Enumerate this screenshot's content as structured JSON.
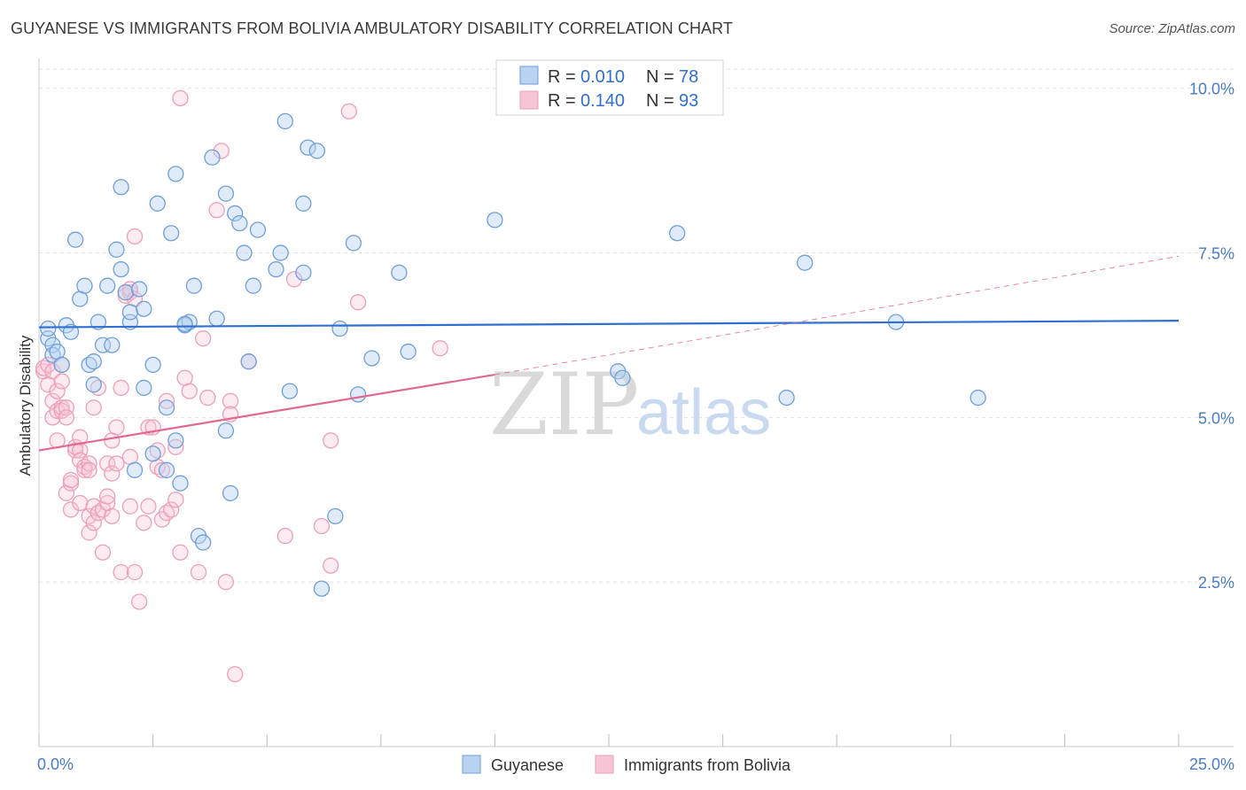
{
  "title": "GUYANESE VS IMMIGRANTS FROM BOLIVIA AMBULATORY DISABILITY CORRELATION CHART",
  "source": "Source: ZipAtlas.com",
  "watermark": {
    "zip": "ZIP",
    "atlas": "atlas"
  },
  "colors": {
    "blue_stroke": "#6f9fd8",
    "blue_fill": "#b9d3f1",
    "blue_line": "#2f6fcf",
    "pink_stroke": "#ec9fb8",
    "pink_fill": "#f6c6d6",
    "pink_line": "#e0698f",
    "grid": "#e2e2e2",
    "axis_label": "#4a7cc9"
  },
  "legend": {
    "row1": {
      "r_label": "R =",
      "r_value": "0.010",
      "n_label": "N =",
      "n_value": "78"
    },
    "row2": {
      "r_label": "R =",
      "r_value": "0.140",
      "n_label": "N =",
      "n_value": "93"
    }
  },
  "chart_data": {
    "type": "scatter",
    "title": "GUYANESE VS IMMIGRANTS FROM BOLIVIA AMBULATORY DISABILITY CORRELATION CHART",
    "xlabel": "",
    "ylabel": "Ambulatory Disability",
    "xlim": [
      0,
      25
    ],
    "ylim": [
      0,
      10.4
    ],
    "x_tick_labels": [
      "0.0%",
      "25.0%"
    ],
    "y_ticks": [
      2.5,
      5.0,
      7.5,
      10.0
    ],
    "y_tick_labels": [
      "2.5%",
      "5.0%",
      "7.5%",
      "10.0%"
    ],
    "legend_position": "bottom-center",
    "series": [
      {
        "name": "Guyanese",
        "r": 0.01,
        "n": 78,
        "trend": {
          "x": [
            0,
            25
          ],
          "y": [
            6.37,
            6.47
          ],
          "dashed_x": null
        },
        "points": [
          [
            0.2,
            6.2
          ],
          [
            0.2,
            6.35
          ],
          [
            0.3,
            6.1
          ],
          [
            0.3,
            5.95
          ],
          [
            0.4,
            6.0
          ],
          [
            0.5,
            5.8
          ],
          [
            0.6,
            6.4
          ],
          [
            0.7,
            6.3
          ],
          [
            0.8,
            7.7
          ],
          [
            0.9,
            6.8
          ],
          [
            1.0,
            7.0
          ],
          [
            1.1,
            5.8
          ],
          [
            1.2,
            5.85
          ],
          [
            1.2,
            5.5
          ],
          [
            1.3,
            6.45
          ],
          [
            1.4,
            6.1
          ],
          [
            1.5,
            7.0
          ],
          [
            1.6,
            6.1
          ],
          [
            1.7,
            7.55
          ],
          [
            1.8,
            7.25
          ],
          [
            1.8,
            8.5
          ],
          [
            1.9,
            6.9
          ],
          [
            2.0,
            6.45
          ],
          [
            2.0,
            6.6
          ],
          [
            2.1,
            4.2
          ],
          [
            2.2,
            6.95
          ],
          [
            2.3,
            6.65
          ],
          [
            2.3,
            5.45
          ],
          [
            2.5,
            5.8
          ],
          [
            2.5,
            4.45
          ],
          [
            2.6,
            8.25
          ],
          [
            2.8,
            5.15
          ],
          [
            2.8,
            4.2
          ],
          [
            2.9,
            7.8
          ],
          [
            3.0,
            8.7
          ],
          [
            3.0,
            4.65
          ],
          [
            3.1,
            4.0
          ],
          [
            3.2,
            6.4
          ],
          [
            3.3,
            6.45
          ],
          [
            3.4,
            7.0
          ],
          [
            3.5,
            3.2
          ],
          [
            3.6,
            3.1
          ],
          [
            3.8,
            8.95
          ],
          [
            3.9,
            6.5
          ],
          [
            4.1,
            8.4
          ],
          [
            4.1,
            4.8
          ],
          [
            4.2,
            3.85
          ],
          [
            4.3,
            8.1
          ],
          [
            4.4,
            7.95
          ],
          [
            4.5,
            7.5
          ],
          [
            4.6,
            5.85
          ],
          [
            4.7,
            7.0
          ],
          [
            4.8,
            7.85
          ],
          [
            5.2,
            7.25
          ],
          [
            5.3,
            7.5
          ],
          [
            5.4,
            9.5
          ],
          [
            5.5,
            5.4
          ],
          [
            5.8,
            8.25
          ],
          [
            5.8,
            7.2
          ],
          [
            5.9,
            9.1
          ],
          [
            6.1,
            9.05
          ],
          [
            6.2,
            2.4
          ],
          [
            6.5,
            3.5
          ],
          [
            6.6,
            6.35
          ],
          [
            6.9,
            7.65
          ],
          [
            7.0,
            5.35
          ],
          [
            7.3,
            5.9
          ],
          [
            7.9,
            7.2
          ],
          [
            8.1,
            6.0
          ],
          [
            10.0,
            8.0
          ],
          [
            12.7,
            5.7
          ],
          [
            12.8,
            5.6
          ],
          [
            14.0,
            7.8
          ],
          [
            16.4,
            5.3
          ],
          [
            16.8,
            7.35
          ],
          [
            18.8,
            6.45
          ],
          [
            20.6,
            5.3
          ],
          [
            3.2,
            6.42
          ]
        ]
      },
      {
        "name": "Immigrants from Bolivia",
        "r": 0.14,
        "n": 93,
        "trend": {
          "x": [
            0,
            10
          ],
          "y": [
            4.5,
            5.65
          ],
          "dashed_x": [
            10,
            25
          ],
          "dashed_y": [
            5.65,
            7.45
          ]
        },
        "points": [
          [
            0.1,
            5.7
          ],
          [
            0.1,
            5.75
          ],
          [
            0.2,
            5.8
          ],
          [
            0.2,
            5.5
          ],
          [
            0.3,
            5.7
          ],
          [
            0.3,
            5.0
          ],
          [
            0.3,
            5.25
          ],
          [
            0.4,
            5.1
          ],
          [
            0.4,
            5.4
          ],
          [
            0.4,
            4.65
          ],
          [
            0.5,
            5.15
          ],
          [
            0.5,
            5.8
          ],
          [
            0.5,
            5.55
          ],
          [
            0.5,
            5.1
          ],
          [
            0.6,
            5.15
          ],
          [
            0.6,
            5.0
          ],
          [
            0.6,
            3.85
          ],
          [
            0.7,
            4.0
          ],
          [
            0.7,
            4.05
          ],
          [
            0.7,
            3.6
          ],
          [
            0.8,
            4.5
          ],
          [
            0.8,
            4.55
          ],
          [
            0.9,
            4.5
          ],
          [
            0.9,
            4.7
          ],
          [
            0.9,
            3.7
          ],
          [
            0.9,
            4.35
          ],
          [
            1.0,
            4.25
          ],
          [
            1.0,
            4.2
          ],
          [
            1.1,
            4.3
          ],
          [
            1.1,
            4.2
          ],
          [
            1.1,
            3.25
          ],
          [
            1.1,
            3.5
          ],
          [
            1.2,
            3.4
          ],
          [
            1.2,
            3.65
          ],
          [
            1.2,
            5.15
          ],
          [
            1.3,
            5.45
          ],
          [
            1.3,
            3.55
          ],
          [
            1.4,
            3.6
          ],
          [
            1.4,
            2.95
          ],
          [
            1.5,
            3.7
          ],
          [
            1.5,
            3.8
          ],
          [
            1.5,
            4.3
          ],
          [
            1.6,
            4.15
          ],
          [
            1.6,
            4.65
          ],
          [
            1.6,
            3.5
          ],
          [
            1.7,
            4.85
          ],
          [
            1.7,
            4.3
          ],
          [
            1.8,
            5.45
          ],
          [
            1.8,
            2.65
          ],
          [
            1.9,
            6.85
          ],
          [
            2.0,
            6.9
          ],
          [
            2.0,
            3.65
          ],
          [
            2.0,
            4.4
          ],
          [
            2.0,
            6.95
          ],
          [
            2.1,
            6.8
          ],
          [
            2.1,
            2.65
          ],
          [
            2.1,
            7.75
          ],
          [
            2.2,
            2.2
          ],
          [
            2.3,
            3.4
          ],
          [
            2.4,
            4.85
          ],
          [
            2.4,
            3.65
          ],
          [
            2.5,
            4.85
          ],
          [
            2.6,
            4.5
          ],
          [
            2.6,
            4.25
          ],
          [
            2.7,
            4.2
          ],
          [
            2.7,
            3.45
          ],
          [
            2.8,
            3.55
          ],
          [
            2.8,
            5.25
          ],
          [
            2.9,
            3.6
          ],
          [
            3.0,
            4.55
          ],
          [
            3.0,
            3.75
          ],
          [
            3.1,
            2.95
          ],
          [
            3.2,
            5.6
          ],
          [
            3.3,
            5.4
          ],
          [
            3.5,
            2.65
          ],
          [
            3.6,
            6.2
          ],
          [
            3.7,
            5.3
          ],
          [
            3.9,
            8.15
          ],
          [
            4.0,
            9.05
          ],
          [
            4.1,
            2.5
          ],
          [
            4.2,
            5.25
          ],
          [
            4.2,
            5.05
          ],
          [
            4.3,
            1.1
          ],
          [
            4.6,
            5.85
          ],
          [
            5.4,
            3.2
          ],
          [
            5.6,
            7.1
          ],
          [
            6.2,
            3.35
          ],
          [
            6.4,
            2.75
          ],
          [
            6.4,
            4.65
          ],
          [
            6.8,
            9.65
          ],
          [
            7.0,
            6.75
          ],
          [
            8.8,
            6.05
          ],
          [
            3.1,
            9.85
          ]
        ]
      }
    ]
  },
  "bottom_legend": {
    "series1": "Guyanese",
    "series2": "Immigrants from Bolivia"
  }
}
